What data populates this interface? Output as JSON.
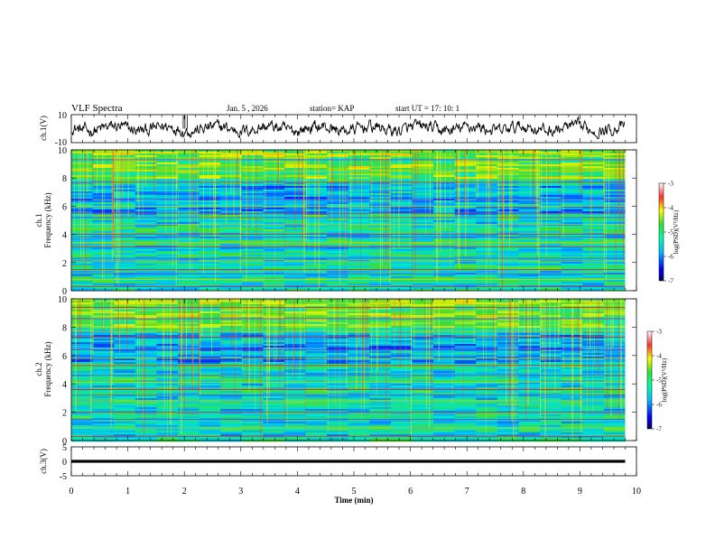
{
  "header": {
    "title": "VLF Spectra",
    "date": "Jan. 5 , 2026",
    "station": "station= KAP",
    "start": "start UT =  17: 10: 1"
  },
  "chart_data": [
    {
      "type": "line",
      "name": "ch1-waveform",
      "ylabel": "ch.1(V)",
      "ylim": [
        -10,
        10
      ],
      "yticks": [
        "10",
        "-10"
      ],
      "xlim": [
        0,
        10
      ],
      "data_end_min": 9.8,
      "description_series": "noisy waveform oscillating around 0 V, amplitude ~4 V"
    },
    {
      "type": "heatmap",
      "name": "ch1-spectrogram",
      "ylabel_top": "ch.1",
      "ylabel": "Frequency (kHz)",
      "ylim": [
        0,
        10
      ],
      "yticks": [
        "0",
        "2",
        "4",
        "6",
        "8",
        "10"
      ],
      "xlim": [
        0,
        10
      ],
      "data_end_min": 9.8,
      "colorbar": {
        "label": "log(PSD)(V²/Hz)",
        "range": [
          -7,
          -3
        ],
        "ticks": [
          "-3",
          "-4",
          "-5",
          "-6",
          "-7"
        ]
      },
      "lines_khz": [
        0.3,
        0.8,
        1.2,
        1.5,
        2.1,
        2.3,
        3.1,
        3.4,
        3.8,
        4.0,
        4.7,
        5.2,
        5.5,
        6.0,
        6.5,
        7.7,
        8.5,
        9.3
      ]
    },
    {
      "type": "heatmap",
      "name": "ch2-spectrogram",
      "ylabel_top": "ch.2",
      "ylabel": "Frequency (kHz)",
      "ylim": [
        0,
        10
      ],
      "yticks": [
        "0",
        "2",
        "4",
        "6",
        "8",
        "10"
      ],
      "xlim": [
        0,
        10
      ],
      "data_end_min": 9.8,
      "colorbar": {
        "label": "log(PSD)(V²/Hz)",
        "range": [
          -7,
          -3
        ],
        "ticks": [
          "-3",
          "-4",
          "-5",
          "-6",
          "-7"
        ]
      },
      "lines_khz": [
        0.3,
        0.9,
        1.5,
        2.0,
        2.8,
        3.2,
        3.6,
        4.1,
        4.6,
        5.3,
        5.8,
        6.4,
        7.3,
        7.7,
        8.6,
        9.4
      ]
    },
    {
      "type": "line",
      "name": "ch3-waveform",
      "ylabel": "ch.3(V)",
      "ylim": [
        -5,
        5
      ],
      "yticks": [
        "5",
        "0",
        "-5"
      ],
      "xlim": [
        0,
        10
      ],
      "data_end_min": 9.8,
      "description_series": "dense band of values between -0.5 and 0.5 V"
    }
  ],
  "xaxis": {
    "label": "Time (min)",
    "ticks": [
      "0",
      "1",
      "2",
      "3",
      "4",
      "5",
      "6",
      "7",
      "8",
      "9",
      "10"
    ]
  }
}
